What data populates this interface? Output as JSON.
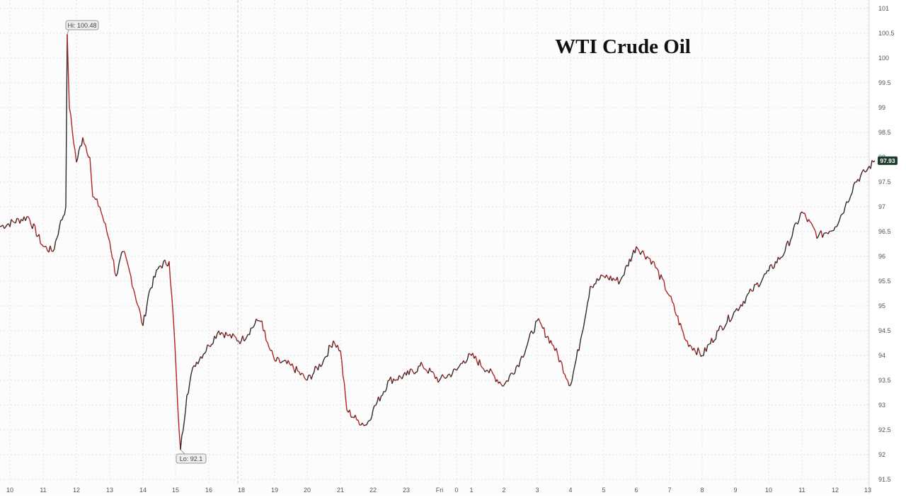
{
  "chart_data": {
    "type": "line",
    "title": "WTI Crude Oil",
    "xlabel": "",
    "ylabel": "",
    "ylim": [
      91.5,
      101
    ],
    "y_ticks": [
      "101",
      "100.5",
      "100",
      "99.5",
      "99",
      "98.5",
      "98",
      "97.5",
      "97",
      "96.5",
      "96",
      "95.5",
      "95",
      "94.5",
      "94",
      "93.5",
      "93",
      "92.5",
      "92",
      "91.5"
    ],
    "x_ticks": [
      "10",
      "11",
      "12",
      "13",
      "14",
      "15",
      "16",
      "18",
      "19",
      "20",
      "21",
      "22",
      "23",
      "Fri",
      "0",
      "1",
      "2",
      "3",
      "4",
      "5",
      "6",
      "7",
      "8",
      "9",
      "10",
      "11",
      "12",
      "13"
    ],
    "grid": true,
    "series": [
      {
        "x": [
          "10",
          "10.5",
          "11",
          "11.3",
          "11.5",
          "11.7",
          "11.75",
          "11.8",
          "12",
          "12.2",
          "12.4",
          "12.5",
          "12.7",
          "13",
          "13.2",
          "13.4",
          "13.6",
          "14",
          "14.2",
          "14.5",
          "14.8",
          "15",
          "15.1",
          "15.2",
          "15.4",
          "15.6",
          "16",
          "16.3",
          "16.6",
          "17",
          "17.5",
          "18",
          "18.3",
          "18.6",
          "19",
          "19.5",
          "20",
          "20.5",
          "20.8",
          "21",
          "21.2",
          "21.5",
          "21.8",
          "22",
          "22.5",
          "23",
          "23.5",
          "Fri",
          "0",
          "0.5",
          "1",
          "1.5",
          "2",
          "2.5",
          "3",
          "3.5",
          "4",
          "4.3",
          "4.6",
          "5",
          "5.5",
          "6",
          "6.5",
          "7",
          "7.5",
          "8",
          "8.5",
          "9",
          "9.5",
          "10",
          "10.5",
          "11",
          "11.5",
          "12",
          "12.3",
          "12.6",
          "12.9",
          "13"
        ],
        "values": [
          96.6,
          96.8,
          96.2,
          96.1,
          96.6,
          97.0,
          100.48,
          99.0,
          97.9,
          98.4,
          98.0,
          97.2,
          97.0,
          96.3,
          95.6,
          96.1,
          95.7,
          94.6,
          95.3,
          95.8,
          95.9,
          94.5,
          93.0,
          92.1,
          93.2,
          93.8,
          94.2,
          94.5,
          94.4,
          94.3,
          94.7,
          94.7,
          94.3,
          94.1,
          93.9,
          93.8,
          93.5,
          93.9,
          94.3,
          94.1,
          92.9,
          92.7,
          92.6,
          92.9,
          93.5,
          93.6,
          93.8,
          93.5,
          93.7,
          93.9,
          94.0,
          93.7,
          93.4,
          93.9,
          94.7,
          94.2,
          93.4,
          94.3,
          95.4,
          95.6,
          95.5,
          96.2,
          95.9,
          95.2,
          94.3,
          94.0,
          94.5,
          94.9,
          95.3,
          95.7,
          96.1,
          96.9,
          96.4,
          96.6,
          97.0,
          97.5,
          97.7,
          97.93
        ]
      }
    ],
    "annotations": {
      "high": "Hi: 100.48",
      "low": "Lo: 92.1",
      "last_price": "97.93"
    },
    "colors": {
      "line_up": "#2a2a2a",
      "line_down": "#b22222",
      "last_price_bg": "#1f3b2b",
      "grid": "#e2e2e2"
    }
  }
}
